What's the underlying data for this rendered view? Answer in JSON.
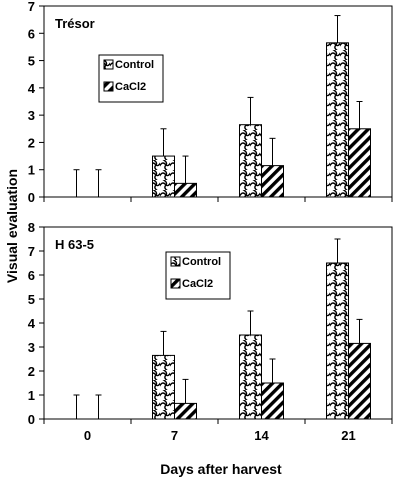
{
  "figure": {
    "ylabel": "Visual evaluation",
    "xlabel": "Days after harvest"
  },
  "chart_data": [
    {
      "type": "bar",
      "title": "Trésor",
      "categories": [
        "0",
        "7",
        "14",
        "21"
      ],
      "ylim": [
        0,
        7
      ],
      "yticks": [
        0,
        1,
        2,
        3,
        4,
        5,
        6,
        7
      ],
      "grid": false,
      "legend_position": "upper-left",
      "series": [
        {
          "name": "Control",
          "values": [
            0,
            1.5,
            2.65,
            5.65
          ],
          "errors": [
            1.0,
            1.0,
            1.0,
            1.0
          ],
          "pattern": "wave-crosshatch"
        },
        {
          "name": "CaCl2",
          "values": [
            0,
            0.5,
            1.15,
            2.5
          ],
          "errors": [
            1.0,
            1.0,
            1.0,
            1.0
          ],
          "pattern": "diagonal-stripes"
        }
      ]
    },
    {
      "type": "bar",
      "title": "H 63-5",
      "categories": [
        "0",
        "7",
        "14",
        "21"
      ],
      "ylim": [
        0,
        8
      ],
      "yticks": [
        0,
        1,
        2,
        3,
        4,
        5,
        6,
        7,
        8
      ],
      "grid": false,
      "legend_position": "upper-left",
      "series": [
        {
          "name": "Control",
          "values": [
            0,
            2.65,
            3.5,
            6.5
          ],
          "errors": [
            1.0,
            1.0,
            1.0,
            1.0
          ],
          "pattern": "wave-crosshatch"
        },
        {
          "name": "CaCl2",
          "values": [
            0,
            0.65,
            1.5,
            3.15
          ],
          "errors": [
            1.0,
            1.0,
            1.0,
            1.0
          ],
          "pattern": "diagonal-stripes"
        }
      ]
    }
  ]
}
